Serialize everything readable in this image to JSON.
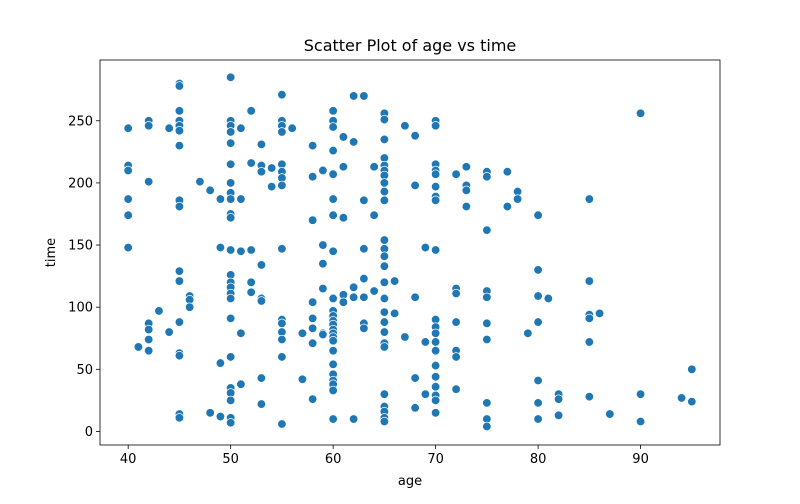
{
  "chart_data": {
    "type": "scatter",
    "title": "Scatter Plot of age vs time",
    "xlabel": "age",
    "ylabel": "time",
    "xlim": [
      37.25,
      97.75
    ],
    "ylim": [
      -10.9,
      298.9
    ],
    "xticks": [
      40,
      50,
      60,
      70,
      80,
      90
    ],
    "yticks": [
      0,
      50,
      100,
      150,
      200,
      250
    ],
    "grid": false,
    "color": "#1f77b4",
    "points": [
      [
        40,
        244
      ],
      [
        40,
        214
      ],
      [
        40,
        210
      ],
      [
        40,
        187
      ],
      [
        40,
        174
      ],
      [
        40,
        148
      ],
      [
        41,
        68
      ],
      [
        42,
        250
      ],
      [
        42,
        246
      ],
      [
        42,
        201
      ],
      [
        42,
        87
      ],
      [
        42,
        82
      ],
      [
        42,
        74
      ],
      [
        42,
        65
      ],
      [
        43,
        97
      ],
      [
        44,
        244
      ],
      [
        44,
        80
      ],
      [
        45,
        280
      ],
      [
        45,
        278
      ],
      [
        45,
        258
      ],
      [
        45,
        250
      ],
      [
        45,
        246
      ],
      [
        45,
        242
      ],
      [
        45,
        230
      ],
      [
        45,
        186
      ],
      [
        45,
        181
      ],
      [
        45,
        129
      ],
      [
        45,
        121
      ],
      [
        45,
        88
      ],
      [
        45,
        63
      ],
      [
        45,
        61
      ],
      [
        45,
        14
      ],
      [
        45,
        11
      ],
      [
        46,
        109
      ],
      [
        46,
        106
      ],
      [
        46,
        100
      ],
      [
        47,
        201
      ],
      [
        48,
        194
      ],
      [
        48,
        15
      ],
      [
        49,
        187
      ],
      [
        49,
        148
      ],
      [
        49,
        55
      ],
      [
        49,
        12
      ],
      [
        50,
        285
      ],
      [
        50,
        250
      ],
      [
        50,
        246
      ],
      [
        50,
        241
      ],
      [
        50,
        232
      ],
      [
        50,
        215
      ],
      [
        50,
        200
      ],
      [
        50,
        192
      ],
      [
        50,
        187
      ],
      [
        50,
        175
      ],
      [
        50,
        172
      ],
      [
        50,
        146
      ],
      [
        50,
        126
      ],
      [
        50,
        120
      ],
      [
        50,
        116
      ],
      [
        50,
        111
      ],
      [
        50,
        107
      ],
      [
        50,
        91
      ],
      [
        50,
        60
      ],
      [
        50,
        35
      ],
      [
        50,
        31
      ],
      [
        50,
        25
      ],
      [
        50,
        11
      ],
      [
        50,
        7
      ],
      [
        51,
        244
      ],
      [
        51,
        187
      ],
      [
        51,
        145
      ],
      [
        51,
        79
      ],
      [
        51,
        38
      ],
      [
        52,
        258
      ],
      [
        52,
        216
      ],
      [
        52,
        146
      ],
      [
        52,
        120
      ],
      [
        52,
        112
      ],
      [
        53,
        231
      ],
      [
        53,
        214
      ],
      [
        53,
        209
      ],
      [
        53,
        134
      ],
      [
        53,
        107
      ],
      [
        53,
        105
      ],
      [
        53,
        43
      ],
      [
        53,
        22
      ],
      [
        54,
        212
      ],
      [
        54,
        197
      ],
      [
        55,
        271
      ],
      [
        55,
        250
      ],
      [
        55,
        246
      ],
      [
        55,
        241
      ],
      [
        55,
        215
      ],
      [
        55,
        209
      ],
      [
        55,
        204
      ],
      [
        55,
        198
      ],
      [
        55,
        147
      ],
      [
        55,
        90
      ],
      [
        55,
        87
      ],
      [
        55,
        80
      ],
      [
        55,
        74
      ],
      [
        55,
        60
      ],
      [
        55,
        6
      ],
      [
        56,
        244
      ],
      [
        57,
        79
      ],
      [
        57,
        42
      ],
      [
        58,
        230
      ],
      [
        58,
        205
      ],
      [
        58,
        170
      ],
      [
        58,
        104
      ],
      [
        58,
        91
      ],
      [
        58,
        83
      ],
      [
        58,
        71
      ],
      [
        58,
        26
      ],
      [
        59,
        210
      ],
      [
        59,
        150
      ],
      [
        59,
        135
      ],
      [
        59,
        115
      ],
      [
        59,
        79
      ],
      [
        59,
        78
      ],
      [
        60,
        258
      ],
      [
        60,
        250
      ],
      [
        60,
        245
      ],
      [
        60,
        226
      ],
      [
        60,
        207
      ],
      [
        60,
        187
      ],
      [
        60,
        174
      ],
      [
        60,
        145
      ],
      [
        60,
        107
      ],
      [
        60,
        97
      ],
      [
        60,
        93
      ],
      [
        60,
        89
      ],
      [
        60,
        86
      ],
      [
        60,
        82
      ],
      [
        60,
        79
      ],
      [
        60,
        76
      ],
      [
        60,
        73
      ],
      [
        60,
        65
      ],
      [
        60,
        54
      ],
      [
        60,
        46
      ],
      [
        60,
        41
      ],
      [
        60,
        38
      ],
      [
        60,
        33
      ],
      [
        60,
        10
      ],
      [
        61,
        237
      ],
      [
        61,
        213
      ],
      [
        61,
        172
      ],
      [
        61,
        110
      ],
      [
        61,
        104
      ],
      [
        62,
        270
      ],
      [
        62,
        233
      ],
      [
        62,
        116
      ],
      [
        62,
        108
      ],
      [
        62,
        10
      ],
      [
        63,
        270
      ],
      [
        63,
        186
      ],
      [
        63,
        147
      ],
      [
        63,
        123
      ],
      [
        63,
        108
      ],
      [
        63,
        87
      ],
      [
        63,
        83
      ],
      [
        64,
        213
      ],
      [
        64,
        174
      ],
      [
        64,
        113
      ],
      [
        65,
        256
      ],
      [
        65,
        251
      ],
      [
        65,
        235
      ],
      [
        65,
        220
      ],
      [
        65,
        214
      ],
      [
        65,
        210
      ],
      [
        65,
        206
      ],
      [
        65,
        200
      ],
      [
        65,
        193
      ],
      [
        65,
        186
      ],
      [
        65,
        154
      ],
      [
        65,
        147
      ],
      [
        65,
        141
      ],
      [
        65,
        133
      ],
      [
        65,
        120
      ],
      [
        65,
        107
      ],
      [
        65,
        96
      ],
      [
        65,
        88
      ],
      [
        65,
        80
      ],
      [
        65,
        71
      ],
      [
        65,
        68
      ],
      [
        65,
        30
      ],
      [
        65,
        20
      ],
      [
        65,
        16
      ],
      [
        65,
        11
      ],
      [
        65,
        8
      ],
      [
        66,
        121
      ],
      [
        66,
        95
      ],
      [
        67,
        246
      ],
      [
        67,
        76
      ],
      [
        68,
        238
      ],
      [
        68,
        198
      ],
      [
        68,
        108
      ],
      [
        68,
        43
      ],
      [
        68,
        19
      ],
      [
        69,
        148
      ],
      [
        69,
        72
      ],
      [
        69,
        30
      ],
      [
        70,
        250
      ],
      [
        70,
        246
      ],
      [
        70,
        215
      ],
      [
        70,
        210
      ],
      [
        70,
        207
      ],
      [
        70,
        197
      ],
      [
        70,
        189
      ],
      [
        70,
        186
      ],
      [
        70,
        146
      ],
      [
        70,
        90
      ],
      [
        70,
        84
      ],
      [
        70,
        79
      ],
      [
        70,
        72
      ],
      [
        70,
        65
      ],
      [
        70,
        53
      ],
      [
        70,
        44
      ],
      [
        70,
        36
      ],
      [
        70,
        29
      ],
      [
        70,
        25
      ],
      [
        70,
        15
      ],
      [
        72,
        207
      ],
      [
        72,
        115
      ],
      [
        72,
        111
      ],
      [
        72,
        88
      ],
      [
        72,
        65
      ],
      [
        72,
        60
      ],
      [
        72,
        34
      ],
      [
        73,
        213
      ],
      [
        73,
        198
      ],
      [
        73,
        194
      ],
      [
        73,
        181
      ],
      [
        75,
        209
      ],
      [
        75,
        205
      ],
      [
        75,
        162
      ],
      [
        75,
        113
      ],
      [
        75,
        108
      ],
      [
        75,
        87
      ],
      [
        75,
        74
      ],
      [
        75,
        23
      ],
      [
        75,
        10
      ],
      [
        75,
        4
      ],
      [
        77,
        209
      ],
      [
        77,
        181
      ],
      [
        78,
        193
      ],
      [
        78,
        187
      ],
      [
        79,
        79
      ],
      [
        80,
        174
      ],
      [
        80,
        130
      ],
      [
        80,
        109
      ],
      [
        80,
        88
      ],
      [
        80,
        41
      ],
      [
        80,
        23
      ],
      [
        80,
        10
      ],
      [
        81,
        107
      ],
      [
        82,
        30
      ],
      [
        82,
        26
      ],
      [
        82,
        13
      ],
      [
        85,
        187
      ],
      [
        85,
        121
      ],
      [
        85,
        94
      ],
      [
        85,
        91
      ],
      [
        85,
        72
      ],
      [
        85,
        28
      ],
      [
        86,
        95
      ],
      [
        87,
        14
      ],
      [
        90,
        256
      ],
      [
        90,
        30
      ],
      [
        90,
        8
      ],
      [
        94,
        27
      ],
      [
        95,
        50
      ],
      [
        95,
        24
      ]
    ]
  }
}
